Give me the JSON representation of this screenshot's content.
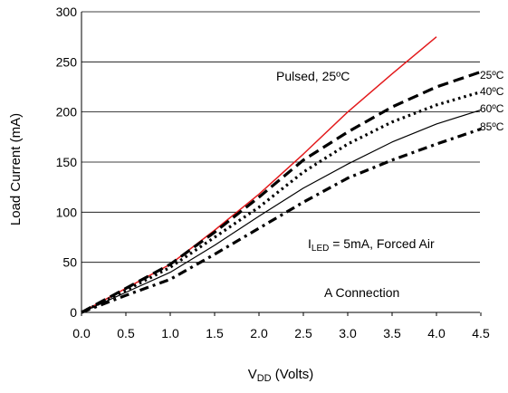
{
  "chart_data": {
    "type": "line",
    "xlabel_main": "V",
    "xlabel_sub": "DD",
    "xlabel_rest": " (Volts)",
    "ylabel": "Load Current (mA)",
    "xlim": [
      0,
      4.5
    ],
    "ylim": [
      0,
      300
    ],
    "x_ticks": [
      "0.0",
      "0.5",
      "1.0",
      "1.5",
      "2.0",
      "2.5",
      "3.0",
      "3.5",
      "4.0",
      "4.5"
    ],
    "y_ticks": [
      "0",
      "50",
      "100",
      "150",
      "200",
      "250",
      "300"
    ],
    "grid": "horizontal",
    "series": [
      {
        "name": "Pulsed, 25ºC",
        "color": "#e31a1c",
        "style": "solid",
        "x": [
          0.0,
          0.5,
          1.0,
          1.5,
          2.0,
          2.5,
          3.0,
          3.5,
          4.0
        ],
        "y": [
          0,
          24,
          48,
          82,
          118,
          158,
          200,
          238,
          275
        ]
      },
      {
        "name": "25ºC",
        "color": "#000000",
        "style": "dash",
        "x": [
          0.0,
          0.5,
          1.0,
          1.5,
          2.0,
          2.5,
          3.0,
          3.5,
          4.0,
          4.5
        ],
        "y": [
          0,
          24,
          48,
          80,
          115,
          152,
          180,
          205,
          225,
          240
        ]
      },
      {
        "name": "40ºC",
        "color": "#000000",
        "style": "dot",
        "x": [
          0.0,
          0.5,
          1.0,
          1.5,
          2.0,
          2.5,
          3.0,
          3.5,
          4.0,
          4.5
        ],
        "y": [
          0,
          22,
          45,
          75,
          105,
          140,
          168,
          190,
          207,
          220
        ]
      },
      {
        "name": "60ºC",
        "color": "#000000",
        "style": "solid-thin",
        "x": [
          0.0,
          0.5,
          1.0,
          1.5,
          2.0,
          2.5,
          3.0,
          3.5,
          4.0,
          4.5
        ],
        "y": [
          0,
          20,
          40,
          67,
          96,
          124,
          148,
          170,
          188,
          202
        ]
      },
      {
        "name": "85ºC",
        "color": "#000000",
        "style": "dashdot",
        "x": [
          0.0,
          0.5,
          1.0,
          1.5,
          2.0,
          2.5,
          3.0,
          3.5,
          4.0,
          4.5
        ],
        "y": [
          0,
          17,
          33,
          58,
          84,
          110,
          134,
          152,
          168,
          183
        ]
      }
    ],
    "annotations": {
      "pulsed": "Pulsed, 25ºC",
      "t25": "25ºC",
      "t40": "40ºC",
      "t60": "60ºC",
      "t85": "85ºC",
      "iled_main": "I",
      "iled_sub": "LED",
      "iled_rest": " = 5mA, Forced Air",
      "connection": "A Connection"
    }
  }
}
